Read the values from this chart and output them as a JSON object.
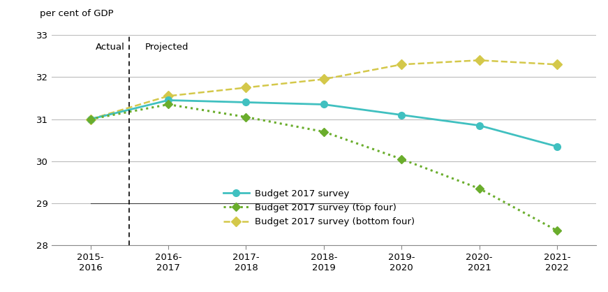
{
  "x_labels": [
    "2015-\n2016",
    "2016-\n2017",
    "2017-\n2018",
    "2018-\n2019",
    "2019-\n2020",
    "2020-\n2021",
    "2021-\n2022"
  ],
  "x_positions": [
    0,
    1,
    2,
    3,
    4,
    5,
    6
  ],
  "survey_main": [
    31.0,
    31.45,
    31.4,
    31.35,
    31.1,
    30.85,
    30.35
  ],
  "survey_top4": [
    31.0,
    31.35,
    31.05,
    30.7,
    30.05,
    29.35,
    28.35
  ],
  "survey_bottom4": [
    31.0,
    31.55,
    31.75,
    31.95,
    32.3,
    32.4,
    32.3
  ],
  "color_main": "#40C0C0",
  "color_top4": "#6AAD2C",
  "color_bottom4": "#D4C84A",
  "ylim": [
    28,
    33
  ],
  "yticks": [
    28,
    29,
    30,
    31,
    32,
    33
  ],
  "ylabel": "per cent of GDP",
  "legend_labels": [
    "Budget 2017 survey",
    "Budget 2017 survey (top four)",
    "Budget 2017 survey (bottom four)"
  ],
  "actual_label": "Actual",
  "projected_label": "Projected",
  "dashed_vline_x": 0.5,
  "background_color": "#ffffff",
  "grid_color": "#bbbbbb",
  "spine_color": "#888888"
}
